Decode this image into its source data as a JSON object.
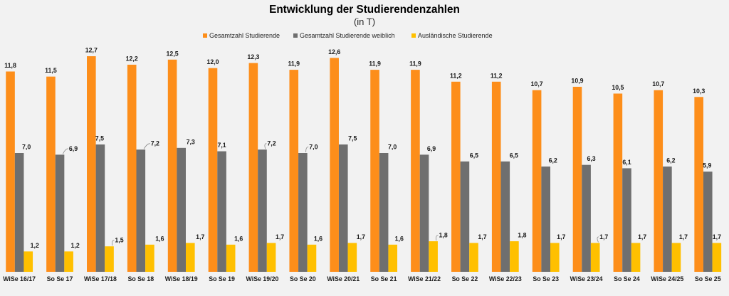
{
  "chart_data": {
    "type": "bar",
    "title": "Entwicklung der Studierendenzahlen",
    "subtitle": "(in T)",
    "categories": [
      "WiSe 16/17",
      "So Se 17",
      "WiSe 17/18",
      "So Se 18",
      "WiSe 18/19",
      "So Se 19",
      "WiSe 19/20",
      "So Se 20",
      "WiSe 20/21",
      "So Se 21",
      "WiSe 21/22",
      "So Se 22",
      "WiSe 22/23",
      "So Se 23",
      "WiSe 23/24",
      "So Se 24",
      "WiSe 24/25",
      "So Se 25"
    ],
    "series": [
      {
        "name": "Gesamtzahl Studierende",
        "color": "#fd8e1a",
        "values": [
          11.8,
          11.5,
          12.7,
          12.2,
          12.5,
          12.0,
          12.3,
          11.9,
          12.6,
          11.9,
          11.9,
          11.2,
          11.2,
          10.7,
          10.9,
          10.5,
          10.7,
          10.3
        ],
        "labels": [
          "11,8",
          "11,5",
          "12,7",
          "12,2",
          "12,5",
          "12,0",
          "12,3",
          "11,9",
          "12,6",
          "11,9",
          "11,9",
          "11,2",
          "11,2",
          "10,7",
          "10,9",
          "10,5",
          "10,7",
          "10,3"
        ]
      },
      {
        "name": "Gesamtzahl Studierende weiblich",
        "color": "#6f6f6f",
        "values": [
          7.0,
          6.9,
          7.5,
          7.2,
          7.3,
          7.1,
          7.2,
          7.0,
          7.5,
          7.0,
          6.9,
          6.5,
          6.5,
          6.2,
          6.3,
          6.1,
          6.2,
          5.9
        ],
        "labels": [
          "7,0",
          "6,9",
          "7,5",
          "7,2",
          "7,3",
          "7,1",
          "7,2",
          "7,0",
          "7,5",
          "7,0",
          "6,9",
          "6,5",
          "6,5",
          "6,2",
          "6,3",
          "6,1",
          "6,2",
          "5,9"
        ]
      },
      {
        "name": "Ausländische Studierende",
        "color": "#ffc000",
        "values": [
          1.2,
          1.2,
          1.5,
          1.6,
          1.7,
          1.6,
          1.7,
          1.6,
          1.7,
          1.6,
          1.8,
          1.7,
          1.8,
          1.7,
          1.7,
          1.7,
          1.7,
          1.7
        ],
        "labels": [
          "1,2",
          "1,2",
          "1,5",
          "1,6",
          "1,7",
          "1,6",
          "1,7",
          "1,6",
          "1,7",
          "1,6",
          "1,8",
          "1,7",
          "1,8",
          "1,7",
          "1,7",
          "1,7",
          "1,7",
          "1,7"
        ]
      }
    ],
    "ylim": [
      0,
      14
    ],
    "grid": false,
    "legend": "top"
  }
}
